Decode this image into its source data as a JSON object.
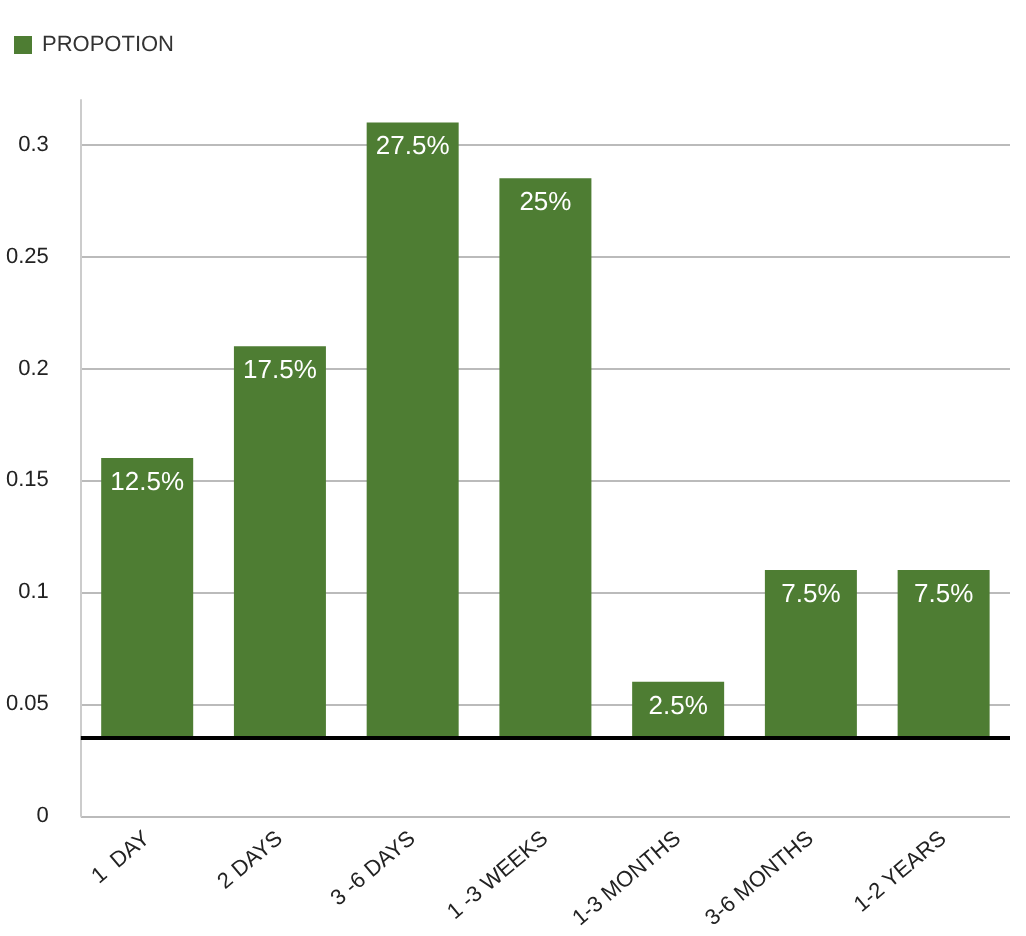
{
  "chart_data": {
    "type": "bar",
    "categories": [
      "1  DAY",
      "2 DAYS",
      "3 -6 DAYS",
      "1 -3 WEEKS",
      "1-3 MONTHS",
      "3-6 MONTHS",
      "1-2 YEARS"
    ],
    "series": [
      {
        "name": "PROPOTION",
        "color": "#4e7d33",
        "values": [
          0.125,
          0.175,
          0.275,
          0.25,
          0.025,
          0.075,
          0.075
        ],
        "base": [
          0.035,
          0.035,
          0.035,
          0.035,
          0.035,
          0.035,
          0.035
        ],
        "value_labels": [
          "12.5%",
          "17.5%",
          "27.5%",
          "25%",
          "2.5%",
          "7.5%",
          "7.5%"
        ]
      }
    ],
    "ylim": [
      0,
      0.32
    ],
    "yticks": [
      0,
      0.05,
      0.1,
      0.15,
      0.2,
      0.25,
      0.3
    ],
    "grid": "y",
    "legend": "top left",
    "ref_lines": [
      {
        "axis": "y",
        "value": 0.035,
        "color": "#000000"
      }
    ]
  }
}
